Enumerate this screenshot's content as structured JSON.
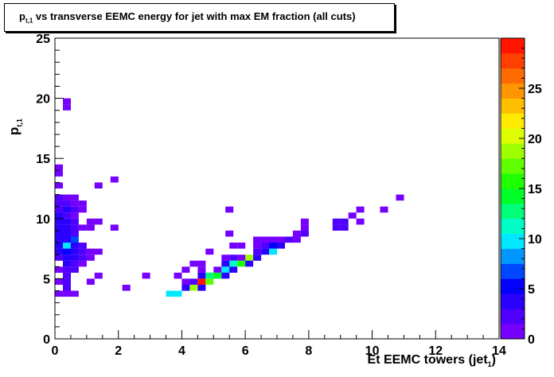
{
  "chart_data": {
    "type": "heatmap",
    "title_main": "p",
    "title_sub": "t,1",
    "title_rest": " vs transverse EEMC energy for jet with max EM fraction (all cuts)",
    "ylabel_main": "p",
    "ylabel_sub": "t,1",
    "xlabel_main": "Et EEMC towers (jet",
    "xlabel_sub": "1",
    "xlabel_end": ")",
    "xlim": [
      0,
      14
    ],
    "ylim": [
      0,
      25
    ],
    "x_ticks": [
      "0",
      "2",
      "4",
      "6",
      "8",
      "10",
      "12",
      "14"
    ],
    "y_ticks": [
      "0",
      "5",
      "10",
      "15",
      "20",
      "25"
    ],
    "zlim": [
      0,
      30
    ],
    "z_ticks": [
      "0",
      "5",
      "10",
      "15",
      "20",
      "25"
    ],
    "bin_size": [
      0.25,
      0.5
    ],
    "cells": [
      [
        0.375,
        19.75,
        1
      ],
      [
        0.375,
        19.25,
        1
      ],
      [
        0.125,
        14.25,
        1
      ],
      [
        0.125,
        13.75,
        1
      ],
      [
        1.875,
        13.25,
        1
      ],
      [
        1.375,
        12.75,
        1
      ],
      [
        0.125,
        12.75,
        1
      ],
      [
        0.125,
        11.75,
        2
      ],
      [
        0.375,
        11.75,
        1
      ],
      [
        0.625,
        11.75,
        1
      ],
      [
        0.125,
        11.25,
        2
      ],
      [
        0.375,
        11.25,
        2
      ],
      [
        0.625,
        11.25,
        1
      ],
      [
        0.875,
        11.25,
        1
      ],
      [
        0.125,
        10.75,
        2
      ],
      [
        0.375,
        10.75,
        3
      ],
      [
        0.625,
        10.75,
        2
      ],
      [
        0.875,
        10.75,
        1
      ],
      [
        0.125,
        10.25,
        3
      ],
      [
        0.375,
        10.25,
        2
      ],
      [
        0.625,
        10.25,
        1
      ],
      [
        0.125,
        9.75,
        3
      ],
      [
        0.375,
        9.75,
        3
      ],
      [
        0.625,
        9.75,
        2
      ],
      [
        1.125,
        9.75,
        1
      ],
      [
        1.375,
        9.75,
        1
      ],
      [
        0.125,
        9.25,
        3
      ],
      [
        0.375,
        9.25,
        3
      ],
      [
        0.625,
        9.25,
        2
      ],
      [
        0.875,
        9.25,
        1
      ],
      [
        1.125,
        9.25,
        1
      ],
      [
        1.875,
        9.25,
        1
      ],
      [
        0.125,
        8.75,
        4
      ],
      [
        0.375,
        8.75,
        3
      ],
      [
        0.625,
        8.75,
        2
      ],
      [
        0.125,
        8.25,
        3
      ],
      [
        0.375,
        8.25,
        4
      ],
      [
        0.625,
        8.25,
        6
      ],
      [
        0.125,
        7.75,
        4
      ],
      [
        0.375,
        7.75,
        9
      ],
      [
        0.625,
        7.75,
        3
      ],
      [
        0.875,
        7.75,
        2
      ],
      [
        0.125,
        7.25,
        3
      ],
      [
        0.375,
        7.25,
        5
      ],
      [
        0.625,
        7.25,
        4
      ],
      [
        0.875,
        7.25,
        2
      ],
      [
        1.125,
        7.25,
        1
      ],
      [
        1.375,
        7.25,
        1
      ],
      [
        0.125,
        6.75,
        2
      ],
      [
        0.375,
        6.75,
        4
      ],
      [
        0.625,
        6.75,
        3
      ],
      [
        0.875,
        6.75,
        2
      ],
      [
        1.125,
        6.75,
        1
      ],
      [
        0.375,
        6.25,
        3
      ],
      [
        0.625,
        6.25,
        2
      ],
      [
        0.875,
        6.25,
        1
      ],
      [
        0.125,
        5.75,
        1
      ],
      [
        0.375,
        5.75,
        2
      ],
      [
        0.625,
        5.75,
        2
      ],
      [
        0.375,
        5.25,
        2
      ],
      [
        1.375,
        5.25,
        1
      ],
      [
        0.125,
        4.75,
        1
      ],
      [
        0.375,
        4.75,
        2
      ],
      [
        1.125,
        4.75,
        1
      ],
      [
        0.375,
        4.25,
        2
      ],
      [
        2.25,
        4.25,
        1
      ],
      [
        0.125,
        3.75,
        1
      ],
      [
        0.375,
        3.75,
        1
      ],
      [
        0.625,
        3.75,
        1
      ],
      [
        10.875,
        11.75,
        1
      ],
      [
        9.625,
        10.75,
        1
      ],
      [
        10.375,
        10.75,
        1
      ],
      [
        5.5,
        10.75,
        1
      ],
      [
        9.375,
        10.25,
        1
      ],
      [
        8.875,
        9.75,
        2
      ],
      [
        9.125,
        9.75,
        2
      ],
      [
        9.625,
        9.75,
        1
      ],
      [
        7.875,
        9.75,
        1
      ],
      [
        8.875,
        9.25,
        2
      ],
      [
        9.125,
        9.25,
        2
      ],
      [
        7.875,
        9.25,
        1
      ],
      [
        7.875,
        8.75,
        2
      ],
      [
        7.625,
        8.75,
        1
      ],
      [
        5.5,
        8.75,
        1
      ],
      [
        7.625,
        8.25,
        1
      ],
      [
        7.375,
        8.25,
        2
      ],
      [
        6.375,
        8.25,
        1
      ],
      [
        6.625,
        8.25,
        1
      ],
      [
        6.875,
        8.25,
        1
      ],
      [
        7.125,
        8.25,
        1
      ],
      [
        7.125,
        7.75,
        3
      ],
      [
        6.875,
        7.75,
        5
      ],
      [
        6.625,
        7.75,
        2
      ],
      [
        6.375,
        7.75,
        1
      ],
      [
        5.875,
        7.75,
        1
      ],
      [
        5.625,
        7.75,
        1
      ],
      [
        6.375,
        7.25,
        2
      ],
      [
        6.625,
        7.25,
        3
      ],
      [
        6.875,
        7.25,
        10
      ],
      [
        4.875,
        7.25,
        1
      ],
      [
        6.125,
        6.75,
        18
      ],
      [
        6.375,
        6.75,
        3
      ],
      [
        5.875,
        6.75,
        1
      ],
      [
        5.625,
        6.75,
        2
      ],
      [
        5.375,
        6.75,
        1
      ],
      [
        5.625,
        6.25,
        11
      ],
      [
        5.875,
        6.25,
        15
      ],
      [
        6.125,
        6.25,
        3
      ],
      [
        5.375,
        6.25,
        3
      ],
      [
        4.375,
        6.25,
        1
      ],
      [
        4.625,
        6.25,
        1
      ],
      [
        5.125,
        5.75,
        1
      ],
      [
        5.375,
        5.75,
        9
      ],
      [
        5.625,
        5.75,
        3
      ],
      [
        4.125,
        5.75,
        1
      ],
      [
        4.625,
        5.75,
        1
      ],
      [
        4.625,
        5.25,
        4
      ],
      [
        4.875,
        5.25,
        12
      ],
      [
        5.125,
        5.25,
        14
      ],
      [
        5.375,
        5.25,
        4
      ],
      [
        2.875,
        5.25,
        1
      ],
      [
        3.875,
        5.25,
        1
      ],
      [
        4.375,
        4.75,
        2
      ],
      [
        4.625,
        4.75,
        29
      ],
      [
        4.875,
        4.75,
        17
      ],
      [
        4.125,
        4.75,
        1
      ],
      [
        4.125,
        4.25,
        4
      ],
      [
        4.375,
        4.25,
        18
      ],
      [
        4.625,
        4.25,
        3
      ],
      [
        3.625,
        3.75,
        10
      ],
      [
        3.875,
        3.75,
        10
      ]
    ]
  }
}
